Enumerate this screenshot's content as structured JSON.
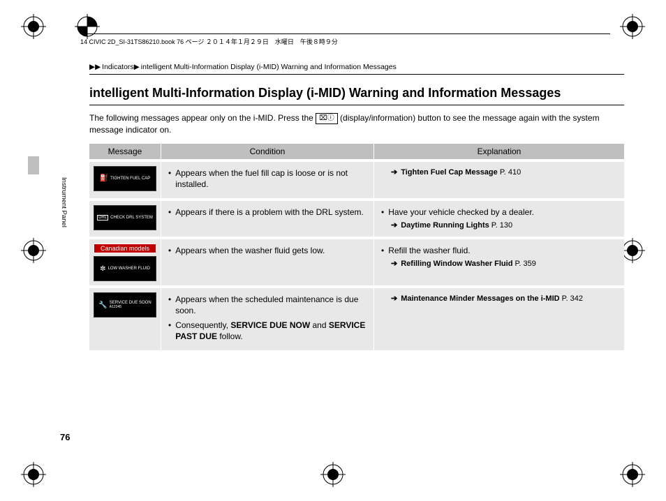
{
  "header_text": "14 CIVIC 2D_SI-31TS86210.book  76 ページ  ２０１４年１月２９日　水曜日　午後８時９分",
  "breadcrumb": {
    "level1": "Indicators",
    "level2": "intelligent Multi-Information Display (i-MID) Warning and Information Messages"
  },
  "title": "intelligent Multi-Information Display (i-MID) Warning and Information Messages",
  "intro_before": "The following messages appear only on the i-MID. Press the ",
  "intro_button_glyph": "⌧ⓘ",
  "intro_after": " (display/information) button to see the message again with the system message indicator on.",
  "table": {
    "headers": [
      "Message",
      "Condition",
      "Explanation"
    ],
    "rows": [
      {
        "tile_icon": "⛽",
        "tile_text": "TIGHTEN FUEL CAP",
        "canadian": false,
        "conditions": [
          "Appears when the fuel fill cap is loose or is not installed."
        ],
        "explanations": [],
        "xref": {
          "label": "Tighten Fuel Cap Message",
          "page": "P. 410"
        }
      },
      {
        "tile_icon": "",
        "tile_drl": "DRL",
        "tile_text": "CHECK DRL SYSTEM",
        "canadian": false,
        "conditions": [
          "Appears if there is a problem with the DRL system."
        ],
        "explanations": [
          "Have your vehicle checked by a dealer."
        ],
        "xref": {
          "label": "Daytime Running Lights",
          "page": "P. 130"
        }
      },
      {
        "tile_icon": "✼",
        "tile_text": "LOW WASHER FLUID",
        "canadian": true,
        "canadian_label": "Canadian models",
        "conditions": [
          "Appears when the washer fluid gets low."
        ],
        "explanations": [
          "Refill the washer fluid."
        ],
        "xref": {
          "label": "Refilling Window Washer Fluid",
          "page": "P. 359"
        }
      },
      {
        "tile_icon": "🔧",
        "tile_text": "SERVICE DUE SOON",
        "tile_sub": "A12345",
        "canadian": false,
        "conditions": [
          "Appears when the scheduled maintenance is due soon.",
          "Consequently, <b>SERVICE DUE NOW</b> and <b>SERVICE PAST DUE</b> follow."
        ],
        "explanations": [],
        "xref": {
          "label": "Maintenance Minder Messages on the i-MID",
          "page": "P. 342"
        }
      }
    ]
  },
  "side_label": "Instrument Panel",
  "page_number": "76",
  "colors": {
    "header_bg": "#bfbfbf",
    "cell_bg": "#e8e8e8",
    "canadian_red": "#c00000",
    "tile_bg": "#000000"
  }
}
